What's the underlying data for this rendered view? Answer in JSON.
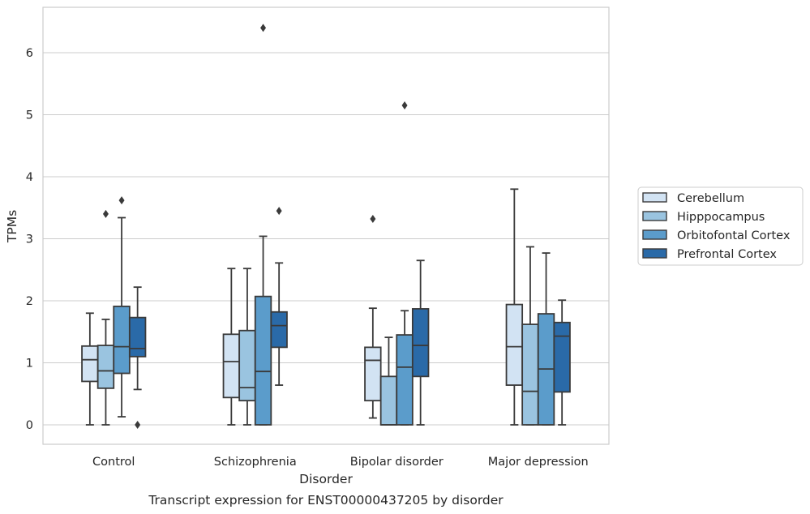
{
  "chart_data": {
    "type": "boxplot",
    "caption": "Transcript expression for ENST00000437205 by disorder",
    "xlabel": "Disorder",
    "ylabel": "TPMs",
    "categories": [
      "Control",
      "Schizophrenia",
      "Bipolar disorder",
      "Major depression"
    ],
    "ylim": [
      -0.32,
      6.75
    ],
    "yticks": [
      0,
      1,
      2,
      3,
      4,
      5,
      6
    ],
    "grid": true,
    "legend_position": "right",
    "series": [
      {
        "name": "Cerebellum",
        "color": "#d2e3f3",
        "boxes": [
          {
            "whislo": 0.0,
            "q1": 0.7,
            "med": 1.05,
            "q3": 1.27,
            "whishi": 1.8,
            "fliers": []
          },
          {
            "whislo": 0.0,
            "q1": 0.44,
            "med": 1.02,
            "q3": 1.46,
            "whishi": 2.52,
            "fliers": []
          },
          {
            "whislo": 0.11,
            "q1": 0.39,
            "med": 1.04,
            "q3": 1.25,
            "whishi": 1.88,
            "fliers": [
              3.32
            ]
          },
          {
            "whislo": 0.0,
            "q1": 0.64,
            "med": 1.26,
            "q3": 1.94,
            "whishi": 3.8,
            "fliers": []
          }
        ]
      },
      {
        "name": "Hipppocampus",
        "color": "#9ac4e0",
        "boxes": [
          {
            "whislo": 0.0,
            "q1": 0.59,
            "med": 0.87,
            "q3": 1.28,
            "whishi": 1.7,
            "fliers": [
              3.4
            ]
          },
          {
            "whislo": 0.0,
            "q1": 0.39,
            "med": 0.6,
            "q3": 1.52,
            "whishi": 2.52,
            "fliers": []
          },
          {
            "whislo": 0.0,
            "q1": 0.0,
            "med": 0.0,
            "q3": 0.78,
            "whishi": 1.41,
            "fliers": []
          },
          {
            "whislo": 0.0,
            "q1": 0.0,
            "med": 0.54,
            "q3": 1.62,
            "whishi": 2.87,
            "fliers": []
          }
        ]
      },
      {
        "name": "Orbitofontal Cortex",
        "color": "#5b9ccb",
        "boxes": [
          {
            "whislo": 0.13,
            "q1": 0.83,
            "med": 1.26,
            "q3": 1.91,
            "whishi": 3.34,
            "fliers": [
              3.62
            ]
          },
          {
            "whislo": 0.0,
            "q1": 0.0,
            "med": 0.86,
            "q3": 2.07,
            "whishi": 3.04,
            "fliers": [
              6.4
            ]
          },
          {
            "whislo": 0.0,
            "q1": 0.0,
            "med": 0.93,
            "q3": 1.45,
            "whishi": 1.84,
            "fliers": [
              5.15
            ]
          },
          {
            "whislo": 0.0,
            "q1": 0.0,
            "med": 0.9,
            "q3": 1.79,
            "whishi": 2.77,
            "fliers": []
          }
        ]
      },
      {
        "name": "Prefrontal Cortex",
        "color": "#2a6aa8",
        "boxes": [
          {
            "whislo": 0.57,
            "q1": 1.1,
            "med": 1.23,
            "q3": 1.73,
            "whishi": 2.22,
            "fliers": [
              0.0
            ]
          },
          {
            "whislo": 0.64,
            "q1": 1.25,
            "med": 1.6,
            "q3": 1.82,
            "whishi": 2.61,
            "fliers": [
              3.45
            ]
          },
          {
            "whislo": 0.0,
            "q1": 0.78,
            "med": 1.28,
            "q3": 1.87,
            "whishi": 2.65,
            "fliers": []
          },
          {
            "whislo": 0.0,
            "q1": 0.53,
            "med": 1.43,
            "q3": 1.65,
            "whishi": 2.01,
            "fliers": []
          }
        ]
      }
    ]
  }
}
